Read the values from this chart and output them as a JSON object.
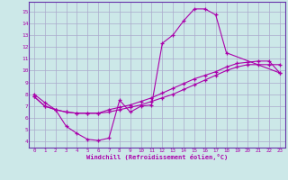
{
  "xlabel": "Windchill (Refroidissement éolien,°C)",
  "background_color": "#cce8e8",
  "grid_color": "#aaaacc",
  "line_color": "#aa00aa",
  "spine_color": "#6633aa",
  "xlim": [
    -0.5,
    23.5
  ],
  "ylim": [
    3.5,
    15.8
  ],
  "xticks": [
    0,
    1,
    2,
    3,
    4,
    5,
    6,
    7,
    8,
    9,
    10,
    11,
    12,
    13,
    14,
    15,
    16,
    17,
    18,
    19,
    20,
    21,
    22,
    23
  ],
  "yticks": [
    4,
    5,
    6,
    7,
    8,
    9,
    10,
    11,
    12,
    13,
    14,
    15
  ],
  "curve1_x": [
    0,
    1,
    2,
    3,
    4,
    5,
    6,
    7,
    8,
    9,
    10,
    11,
    12,
    13,
    14,
    15,
    16,
    17,
    18,
    23
  ],
  "curve1_y": [
    8.0,
    7.3,
    6.7,
    5.3,
    4.7,
    4.2,
    4.1,
    4.3,
    7.5,
    6.5,
    7.0,
    7.1,
    12.3,
    13.0,
    14.2,
    15.2,
    15.2,
    14.7,
    11.5,
    9.8
  ],
  "curve2_x": [
    0,
    1,
    2,
    3,
    4,
    5,
    6,
    7,
    8,
    9,
    10,
    11,
    12,
    13,
    14,
    15,
    16,
    17,
    18,
    19,
    20,
    21,
    22,
    23
  ],
  "curve2_y": [
    7.8,
    7.0,
    6.7,
    6.5,
    6.4,
    6.4,
    6.4,
    6.5,
    6.7,
    6.9,
    7.1,
    7.4,
    7.7,
    8.0,
    8.4,
    8.8,
    9.2,
    9.6,
    10.0,
    10.3,
    10.5,
    10.5,
    10.5,
    10.5
  ],
  "curve3_x": [
    0,
    1,
    2,
    3,
    4,
    5,
    6,
    7,
    8,
    9,
    10,
    11,
    12,
    13,
    14,
    15,
    16,
    17,
    18,
    19,
    20,
    21,
    22,
    23
  ],
  "curve3_y": [
    7.8,
    7.0,
    6.7,
    6.5,
    6.4,
    6.4,
    6.4,
    6.7,
    6.9,
    7.1,
    7.4,
    7.7,
    8.1,
    8.5,
    8.9,
    9.3,
    9.6,
    9.9,
    10.3,
    10.6,
    10.7,
    10.8,
    10.8,
    9.8
  ]
}
